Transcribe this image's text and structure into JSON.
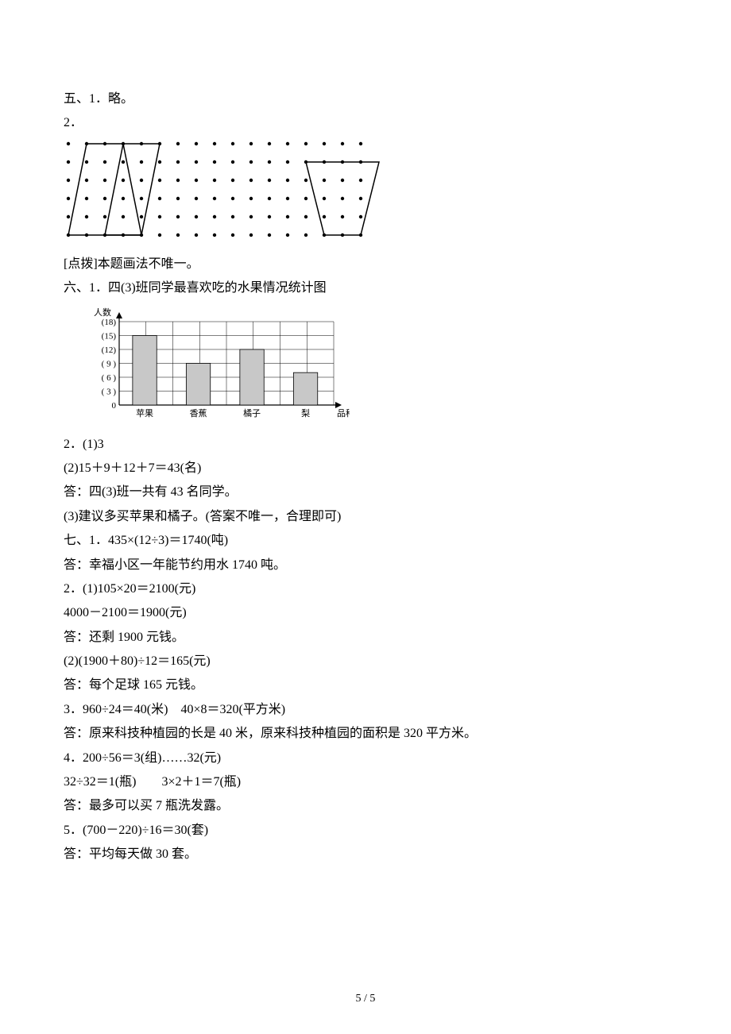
{
  "section5": {
    "header": "五、1．略。",
    "item2_label": "2．",
    "note": "[点拨]本题画法不唯一。",
    "dot_grid": {
      "rows": 6,
      "cols": 17,
      "spacing_x": 23,
      "spacing_y": 23,
      "offset_x": 6,
      "offset_y": 6,
      "dot_r": 2.2,
      "dot_color": "#000000",
      "stroke_color": "#000000",
      "stroke_width": 1.5,
      "trapezoid1": [
        [
          1,
          0
        ],
        [
          5,
          0
        ],
        [
          4,
          5
        ],
        [
          0,
          5
        ]
      ],
      "triangle": [
        [
          3,
          0
        ],
        [
          4,
          5
        ],
        [
          2,
          5
        ]
      ],
      "trapezoid2": [
        [
          13,
          1
        ],
        [
          17,
          1
        ],
        [
          16,
          5
        ],
        [
          14,
          5
        ]
      ]
    }
  },
  "section6": {
    "header": "六、1．四(3)班同学最喜欢吃的水果情况统计图",
    "chart": {
      "y_label": "人数",
      "y_ticks": [
        "(18)",
        "(15)",
        "(12)",
        "( 9 )",
        "( 6 )",
        "( 3 )",
        "0"
      ],
      "x_label": "品种",
      "categories": [
        "苹果",
        "香蕉",
        "橘子",
        "梨"
      ],
      "values": [
        15,
        9,
        12,
        7
      ],
      "y_max": 18,
      "bar_fill": "#c8c8c8",
      "bar_stroke": "#000000",
      "grid_color": "#000000",
      "axis_color": "#000000",
      "label_fontsize": 11
    },
    "item2_line1": "2．(1)3",
    "item2_line2": "(2)15＋9＋12＋7＝43(名)",
    "item2_line3": "答：四(3)班一共有 43 名同学。",
    "item2_line4": "(3)建议多买苹果和橘子。(答案不唯一，合理即可)"
  },
  "section7": {
    "line1": "七、1．435×(12÷3)＝1740(吨)",
    "line2": "答：幸福小区一年能节约用水 1740 吨。",
    "line3": "2．(1)105×20＝2100(元)",
    "line4": "4000－2100＝1900(元)",
    "line5": "答：还剩 1900 元钱。",
    "line6": "(2)(1900＋80)÷12＝165(元)",
    "line7": "答：每个足球 165 元钱。",
    "line8": "3．960÷24＝40(米)　40×8＝320(平方米)",
    "line9": "答：原来科技种植园的长是 40 米，原来科技种植园的面积是 320 平方米。",
    "line10": "4．200÷56＝3(组)……32(元)",
    "line11": "32÷32＝1(瓶)　　3×2＋1＝7(瓶)",
    "line12": "答：最多可以买 7 瓶洗发露。",
    "line13": "5．(700－220)÷16＝30(套)",
    "line14": "答：平均每天做 30 套。"
  },
  "page_number": "5 / 5"
}
